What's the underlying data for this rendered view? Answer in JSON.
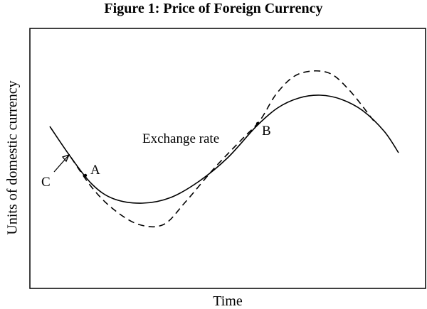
{
  "chart_data": {
    "type": "line",
    "title": "Figure 1: Price of Foreign Currency",
    "xlabel": "Time",
    "ylabel": "Units of domestic currency",
    "grid": false,
    "legend": "none",
    "series": [
      {
        "name": "Exchange rate",
        "style": "solid",
        "points": [
          [
            70,
            178
          ],
          [
            100,
            222
          ],
          [
            130,
            260
          ],
          [
            160,
            280
          ],
          [
            200,
            286
          ],
          [
            240,
            278
          ],
          [
            280,
            255
          ],
          [
            320,
            222
          ],
          [
            360,
            178
          ],
          [
            390,
            152
          ],
          [
            420,
            138
          ],
          [
            450,
            134
          ],
          [
            480,
            140
          ],
          [
            510,
            156
          ],
          [
            540,
            185
          ],
          [
            560,
            215
          ]
        ]
      },
      {
        "name": "",
        "style": "dashed",
        "points": [
          [
            100,
            222
          ],
          [
            130,
            265
          ],
          [
            160,
            295
          ],
          [
            195,
            316
          ],
          [
            230,
            316
          ],
          [
            260,
            285
          ],
          [
            300,
            238
          ],
          [
            340,
            196
          ],
          [
            365,
            170
          ],
          [
            390,
            130
          ],
          [
            420,
            104
          ],
          [
            460,
            102
          ],
          [
            490,
            126
          ],
          [
            525,
            170
          ]
        ]
      }
    ],
    "annotations": [
      {
        "label": "A",
        "x": 120,
        "y": 247
      },
      {
        "label": "B",
        "x": 362,
        "y": 174
      },
      {
        "label": "C",
        "x": 97,
        "y": 218
      },
      {
        "label": "Exchange rate",
        "x": 200,
        "y": 195
      }
    ]
  }
}
